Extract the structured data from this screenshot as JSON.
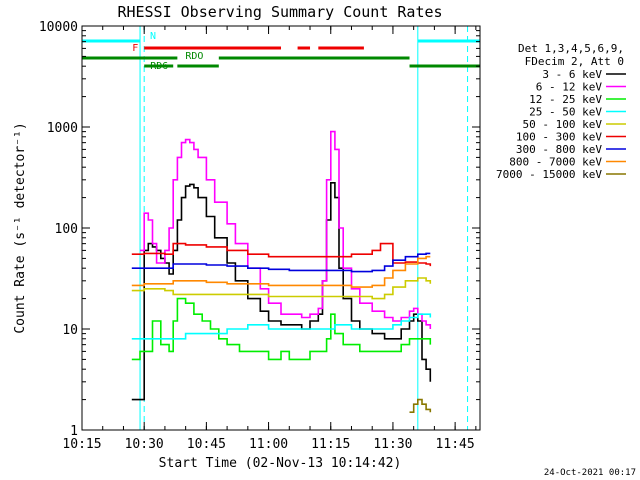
{
  "chart_data": {
    "type": "line",
    "title": "RHESSI Observing Summary Count Rates",
    "xlabel": "Start Time (02-Nov-13 10:14:42)",
    "ylabel": "Count Rate (s⁻¹ detector⁻¹)",
    "footer": "24-Oct-2021 00:17",
    "yscale": "log",
    "ylim": [
      1,
      10000
    ],
    "xlim": [
      "10:15",
      "11:51"
    ],
    "x_ticks": [
      "10:15",
      "10:30",
      "10:45",
      "11:00",
      "11:15",
      "11:30",
      "11:45"
    ],
    "y_ticks": [
      "1",
      "10",
      "100",
      "1000",
      "10000"
    ],
    "legend": {
      "placement": "right",
      "header": [
        "Det 1,3,4,5,6,9,",
        "FDecim 2, Att 0"
      ],
      "entries": [
        {
          "label": "3 - 6 keV",
          "color": "#000000"
        },
        {
          "label": "6 - 12 keV",
          "color": "#ff00ff"
        },
        {
          "label": "12 - 25 keV",
          "color": "#00ee00"
        },
        {
          "label": "25 - 50 keV",
          "color": "#00ffff"
        },
        {
          "label": "50 - 100 keV",
          "color": "#cccc00"
        },
        {
          "label": "100 - 300 keV",
          "color": "#ee0000"
        },
        {
          "label": "300 - 800 keV",
          "color": "#0000dd"
        },
        {
          "label": "800 - 7000 keV",
          "color": "#ff8800"
        },
        {
          "label": "7000 - 15000 keV",
          "color": "#887700"
        }
      ]
    },
    "flags": [
      {
        "label": "N",
        "color": "#00ffff",
        "segments": [
          [
            "10:15",
            "10:29"
          ],
          [
            "11:36",
            "11:51"
          ]
        ]
      },
      {
        "label": "F",
        "color": "#ee0000",
        "segments": [
          [
            "10:30",
            "11:03"
          ],
          [
            "11:07",
            "11:10"
          ],
          [
            "11:12",
            "11:23"
          ]
        ]
      },
      {
        "label": "RDO",
        "color": "#008800",
        "segments": [
          [
            "10:15",
            "10:38"
          ],
          [
            "10:48",
            "11:34"
          ]
        ]
      },
      {
        "label": "RD6",
        "color": "#008800",
        "segments": [
          [
            "10:30",
            "10:37"
          ],
          [
            "10:38",
            "10:48"
          ],
          [
            "11:34",
            "11:51"
          ]
        ]
      }
    ],
    "vertical_markers": [
      {
        "time": "10:15",
        "style": "dashed",
        "color": "#00ffff"
      },
      {
        "time": "10:29",
        "style": "solid",
        "color": "#00ffff"
      },
      {
        "time": "10:30",
        "style": "dashed",
        "color": "#00ffff"
      },
      {
        "time": "11:36",
        "style": "solid",
        "color": "#00ffff"
      },
      {
        "time": "11:48",
        "style": "dashed",
        "color": "#00ffff"
      }
    ],
    "series": [
      {
        "name": "3 - 6 keV",
        "color": "#000000",
        "x": [
          "10:27",
          "10:28",
          "10:29",
          "10:30",
          "10:31",
          "10:32",
          "10:33",
          "10:34",
          "10:35",
          "10:36",
          "10:37",
          "10:38",
          "10:39",
          "10:40",
          "10:41",
          "10:42",
          "10:43",
          "10:45",
          "10:47",
          "10:50",
          "10:52",
          "10:55",
          "10:58",
          "11:00",
          "11:03",
          "11:05",
          "11:08",
          "11:10",
          "11:12",
          "11:13",
          "11:14",
          "11:15",
          "11:16",
          "11:17",
          "11:18",
          "11:20",
          "11:22",
          "11:25",
          "11:28",
          "11:30",
          "11:32",
          "11:34",
          "11:35",
          "11:36",
          "11:37",
          "11:38",
          "11:39"
        ],
        "y": [
          2,
          2,
          2,
          60,
          70,
          65,
          60,
          50,
          45,
          35,
          60,
          120,
          200,
          260,
          270,
          250,
          200,
          130,
          80,
          45,
          30,
          20,
          15,
          12,
          11,
          11,
          10,
          12,
          14,
          30,
          120,
          280,
          200,
          40,
          20,
          12,
          10,
          9,
          8,
          8,
          10,
          12,
          14,
          12,
          5,
          4,
          3
        ]
      },
      {
        "name": "6 - 12 keV",
        "color": "#ff00ff",
        "x": [
          "10:29",
          "10:30",
          "10:31",
          "10:32",
          "10:33",
          "10:34",
          "10:35",
          "10:36",
          "10:37",
          "10:38",
          "10:39",
          "10:40",
          "10:41",
          "10:42",
          "10:43",
          "10:45",
          "10:47",
          "10:50",
          "10:52",
          "10:55",
          "10:58",
          "11:00",
          "11:03",
          "11:05",
          "11:08",
          "11:10",
          "11:12",
          "11:13",
          "11:14",
          "11:15",
          "11:16",
          "11:17",
          "11:18",
          "11:20",
          "11:22",
          "11:25",
          "11:28",
          "11:30",
          "11:32",
          "11:34",
          "11:35",
          "11:36",
          "11:37",
          "11:38",
          "11:39"
        ],
        "y": [
          60,
          140,
          120,
          70,
          45,
          45,
          60,
          100,
          300,
          500,
          700,
          750,
          700,
          600,
          500,
          300,
          180,
          110,
          70,
          40,
          25,
          18,
          14,
          14,
          13,
          14,
          16,
          30,
          300,
          900,
          600,
          100,
          40,
          25,
          18,
          15,
          13,
          12,
          13,
          15,
          16,
          14,
          12,
          11,
          10
        ]
      },
      {
        "name": "12 - 25 keV",
        "color": "#00ee00",
        "x": [
          "10:27",
          "10:29",
          "10:30",
          "10:32",
          "10:34",
          "10:36",
          "10:37",
          "10:38",
          "10:40",
          "10:42",
          "10:44",
          "10:46",
          "10:48",
          "10:50",
          "10:53",
          "10:55",
          "10:58",
          "11:00",
          "11:03",
          "11:05",
          "11:08",
          "11:10",
          "11:12",
          "11:14",
          "11:15",
          "11:16",
          "11:18",
          "11:20",
          "11:22",
          "11:25",
          "11:28",
          "11:30",
          "11:32",
          "11:34",
          "11:36",
          "11:38",
          "11:39"
        ],
        "y": [
          5,
          6,
          6,
          12,
          7,
          6,
          12,
          20,
          18,
          14,
          12,
          10,
          8,
          7,
          6,
          6,
          6,
          5,
          6,
          5,
          5,
          6,
          6,
          8,
          14,
          9,
          7,
          7,
          6,
          6,
          6,
          6,
          7,
          8,
          8,
          8,
          7
        ]
      },
      {
        "name": "25 - 50 keV",
        "color": "#00ffff",
        "x": [
          "10:27",
          "10:29",
          "10:30",
          "10:35",
          "10:37",
          "10:40",
          "10:45",
          "10:50",
          "10:55",
          "11:00",
          "11:05",
          "11:10",
          "11:14",
          "11:16",
          "11:20",
          "11:25",
          "11:28",
          "11:30",
          "11:32",
          "11:34",
          "11:36",
          "11:38",
          "11:39"
        ],
        "y": [
          8,
          8,
          8,
          8,
          8,
          9,
          9,
          10,
          11,
          10,
          10,
          10,
          10,
          11,
          10,
          10,
          10,
          11,
          12,
          13,
          14,
          14,
          13
        ]
      },
      {
        "name": "50 - 100 keV",
        "color": "#cccc00",
        "x": [
          "10:27",
          "10:30",
          "10:35",
          "10:37",
          "10:40",
          "10:45",
          "10:50",
          "10:55",
          "11:00",
          "11:05",
          "11:10",
          "11:15",
          "11:20",
          "11:25",
          "11:28",
          "11:30",
          "11:33",
          "11:36",
          "11:38",
          "11:39"
        ],
        "y": [
          24,
          25,
          24,
          22,
          22,
          22,
          22,
          22,
          21,
          21,
          21,
          21,
          21,
          20,
          22,
          26,
          30,
          32,
          30,
          28
        ]
      },
      {
        "name": "100 - 300 keV",
        "color": "#ee0000",
        "x": [
          "10:27",
          "10:30",
          "10:35",
          "10:37",
          "10:40",
          "10:45",
          "10:50",
          "10:55",
          "11:00",
          "11:05",
          "11:10",
          "11:15",
          "11:20",
          "11:25",
          "11:27",
          "11:30",
          "11:33",
          "11:36",
          "11:38",
          "11:39"
        ],
        "y": [
          55,
          56,
          55,
          70,
          68,
          65,
          60,
          55,
          52,
          52,
          52,
          52,
          55,
          60,
          70,
          45,
          46,
          45,
          44,
          42
        ]
      },
      {
        "name": "300 - 800 keV",
        "color": "#0000dd",
        "x": [
          "10:27",
          "10:30",
          "10:35",
          "10:37",
          "10:40",
          "10:45",
          "10:50",
          "10:55",
          "11:00",
          "11:05",
          "11:10",
          "11:15",
          "11:20",
          "11:25",
          "11:28",
          "11:30",
          "11:33",
          "11:36",
          "11:38",
          "11:39"
        ],
        "y": [
          40,
          40,
          40,
          44,
          44,
          43,
          42,
          40,
          39,
          38,
          38,
          38,
          37,
          38,
          42,
          48,
          52,
          55,
          56,
          56
        ]
      },
      {
        "name": "800 - 7000 keV",
        "color": "#ff8800",
        "x": [
          "10:27",
          "10:30",
          "10:35",
          "10:37",
          "10:40",
          "10:45",
          "10:50",
          "10:55",
          "11:00",
          "11:05",
          "11:10",
          "11:15",
          "11:20",
          "11:25",
          "11:28",
          "11:30",
          "11:33",
          "11:36",
          "11:38",
          "11:39"
        ],
        "y": [
          27,
          28,
          28,
          30,
          30,
          29,
          28,
          28,
          27,
          27,
          27,
          27,
          26,
          27,
          32,
          38,
          44,
          50,
          52,
          52
        ]
      },
      {
        "name": "7000 - 15000 keV",
        "color": "#887700",
        "x": [
          "11:34",
          "11:35",
          "11:36",
          "11:37",
          "11:38",
          "11:39"
        ],
        "y": [
          1.5,
          1.8,
          2,
          1.8,
          1.6,
          1.5
        ]
      }
    ]
  }
}
